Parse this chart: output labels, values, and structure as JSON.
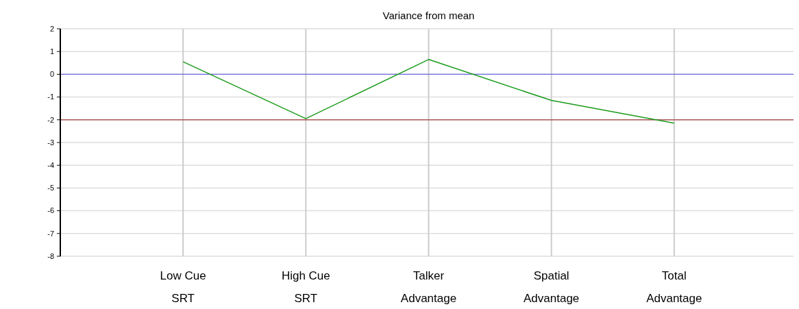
{
  "chart_data": {
    "type": "line",
    "title": "Variance from mean",
    "categories": [
      "Low Cue\nSRT",
      "High Cue\nSRT",
      "Talker\nAdvantage",
      "Spatial\nAdvantage",
      "Total\nAdvantage"
    ],
    "series": [
      {
        "color": "#1a9a1a",
        "values": [
          0.55,
          -1.95,
          0.65,
          -1.15,
          -2.15
        ]
      }
    ],
    "ylim": [
      -8,
      2
    ],
    "yticks": [
      -8,
      -7,
      -6,
      -5,
      -4,
      -3,
      -2,
      -1,
      0,
      1,
      2
    ],
    "ref_lines": [
      {
        "axis": "y",
        "value": 0,
        "color": "#6a6ae0"
      },
      {
        "axis": "y",
        "value": -2,
        "color": "#a03a3a"
      }
    ],
    "grid": true,
    "marker": "none",
    "line_style": "solid"
  }
}
